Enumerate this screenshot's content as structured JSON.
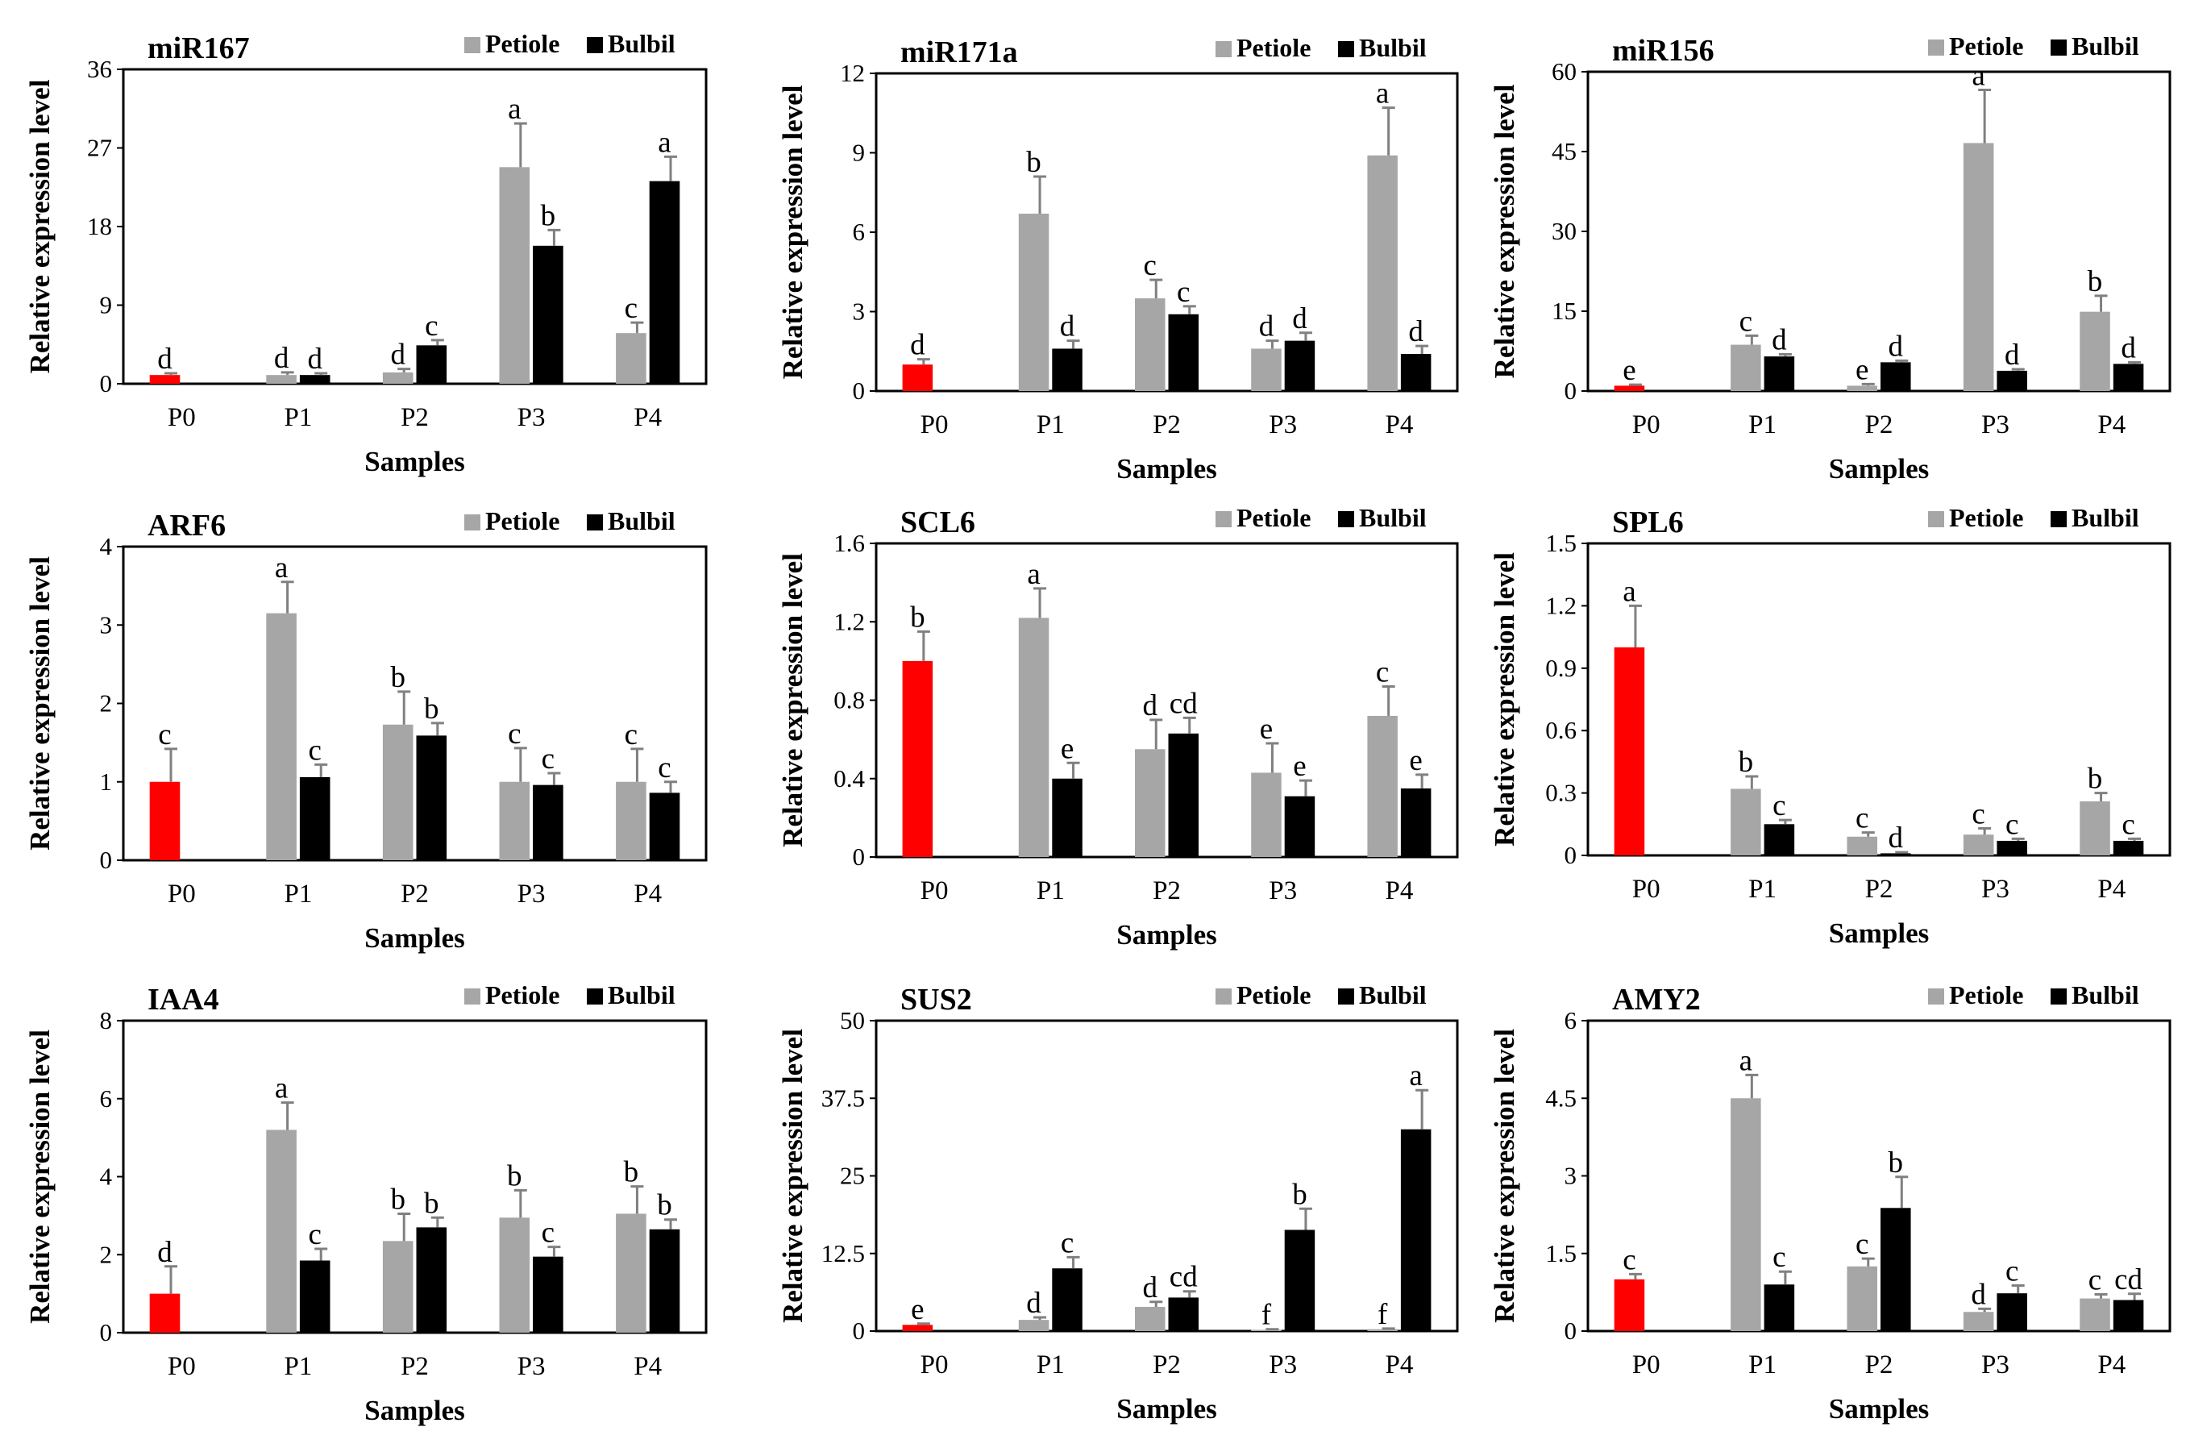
{
  "legend": {
    "petiole": "Petiole",
    "bulbil": "Bulbil"
  },
  "colors": {
    "petiole": "#a6a6a6",
    "bulbil": "#000000",
    "control": "#ff0000",
    "error_bar": "#808080"
  },
  "xlabel": "Samples",
  "ylabel": "Relative expression level",
  "chart_data": [
    {
      "type": "bar",
      "title": "miR167",
      "categories": [
        "P0",
        "P1",
        "P2",
        "P3",
        "P4"
      ],
      "ylim": [
        0,
        36
      ],
      "yticks": [
        0,
        9,
        18,
        27,
        36
      ],
      "ytick_labels": [
        "0",
        "9",
        "18",
        "27",
        "36"
      ],
      "control": {
        "value": 1,
        "error": 0.2,
        "letter": "d"
      },
      "series": [
        {
          "name": "Petiole",
          "values": [
            null,
            1,
            1.3,
            24.8,
            5.8
          ],
          "errors": [
            null,
            0.3,
            0.4,
            5,
            1.2
          ],
          "letters": [
            null,
            "d",
            "d",
            "a",
            "c"
          ]
        },
        {
          "name": "Bulbil",
          "values": [
            null,
            1,
            4.4,
            15.8,
            23.2
          ],
          "errors": [
            null,
            0.2,
            0.6,
            1.8,
            2.8
          ],
          "letters": [
            null,
            "d",
            "c",
            "b",
            "a"
          ]
        }
      ]
    },
    {
      "type": "bar",
      "title": "miR171a",
      "categories": [
        "P0",
        "P1",
        "P2",
        "P3",
        "P4"
      ],
      "ylim": [
        0,
        12
      ],
      "yticks": [
        0,
        3,
        6,
        9,
        12
      ],
      "ytick_labels": [
        "0",
        "3",
        "6",
        "9",
        "12"
      ],
      "control": {
        "value": 1,
        "error": 0.2,
        "letter": "d"
      },
      "series": [
        {
          "name": "Petiole",
          "values": [
            null,
            6.7,
            3.5,
            1.6,
            8.9
          ],
          "errors": [
            null,
            1.4,
            0.7,
            0.3,
            1.8
          ],
          "letters": [
            null,
            "b",
            "c",
            "d",
            "a"
          ]
        },
        {
          "name": "Bulbil",
          "values": [
            null,
            1.6,
            2.9,
            1.9,
            1.4
          ],
          "errors": [
            null,
            0.3,
            0.3,
            0.3,
            0.3
          ],
          "letters": [
            null,
            "d",
            "c",
            "d",
            "d"
          ]
        }
      ]
    },
    {
      "type": "bar",
      "title": "miR156",
      "categories": [
        "P0",
        "P1",
        "P2",
        "P3",
        "P4"
      ],
      "ylim": [
        0,
        60
      ],
      "yticks": [
        0,
        15,
        30,
        45,
        60
      ],
      "ytick_labels": [
        "0",
        "15",
        "30",
        "45",
        "60"
      ],
      "control": {
        "value": 1,
        "error": 0.2,
        "letter": "e"
      },
      "series": [
        {
          "name": "Petiole",
          "values": [
            null,
            8.7,
            1,
            46.6,
            14.9
          ],
          "errors": [
            null,
            1.7,
            0.3,
            10,
            3
          ],
          "letters": [
            null,
            "c",
            "e",
            "a",
            "b"
          ]
        },
        {
          "name": "Bulbil",
          "values": [
            null,
            6.5,
            5.4,
            3.8,
            5.1
          ],
          "errors": [
            null,
            0.4,
            0.3,
            0.3,
            0.3
          ],
          "letters": [
            null,
            "d",
            "d",
            "d",
            "d"
          ]
        }
      ]
    },
    {
      "type": "bar",
      "title": "ARF6",
      "categories": [
        "P0",
        "P1",
        "P2",
        "P3",
        "P4"
      ],
      "ylim": [
        0,
        4
      ],
      "yticks": [
        0,
        1,
        2,
        3,
        4
      ],
      "ytick_labels": [
        "0",
        "1",
        "2",
        "3",
        "4"
      ],
      "control": {
        "value": 1,
        "error": 0.42,
        "letter": "c"
      },
      "series": [
        {
          "name": "Petiole",
          "values": [
            null,
            3.15,
            1.73,
            1,
            1
          ],
          "errors": [
            null,
            0.4,
            0.42,
            0.43,
            0.42
          ],
          "letters": [
            null,
            "a",
            "b",
            "c",
            "c"
          ]
        },
        {
          "name": "Bulbil",
          "values": [
            null,
            1.06,
            1.59,
            0.96,
            0.86
          ],
          "errors": [
            null,
            0.16,
            0.16,
            0.15,
            0.14
          ],
          "letters": [
            null,
            "c",
            "b",
            "c",
            "c"
          ]
        }
      ]
    },
    {
      "type": "bar",
      "title": "SCL6",
      "categories": [
        "P0",
        "P1",
        "P2",
        "P3",
        "P4"
      ],
      "ylim": [
        0,
        1.6
      ],
      "yticks": [
        0,
        0.4,
        0.8,
        1.2,
        1.6
      ],
      "ytick_labels": [
        "0",
        "0.4",
        "0.8",
        "1.2",
        "1.6"
      ],
      "control": {
        "value": 1,
        "error": 0.15,
        "letter": "b"
      },
      "series": [
        {
          "name": "Petiole",
          "values": [
            null,
            1.22,
            0.55,
            0.43,
            0.72
          ],
          "errors": [
            null,
            0.15,
            0.15,
            0.15,
            0.15
          ],
          "letters": [
            null,
            "a",
            "d",
            "e",
            "c"
          ]
        },
        {
          "name": "Bulbil",
          "values": [
            null,
            0.4,
            0.63,
            0.31,
            0.35
          ],
          "errors": [
            null,
            0.08,
            0.08,
            0.08,
            0.07
          ],
          "letters": [
            null,
            "e",
            "cd",
            "e",
            "e"
          ]
        }
      ]
    },
    {
      "type": "bar",
      "title": "SPL6",
      "categories": [
        "P0",
        "P1",
        "P2",
        "P3",
        "P4"
      ],
      "ylim": [
        0,
        1.5
      ],
      "yticks": [
        0,
        0.3,
        0.6,
        0.9,
        1.2,
        1.5
      ],
      "ytick_labels": [
        "0",
        "0.3",
        "0.6",
        "0.9",
        "1.2",
        "1.5"
      ],
      "control": {
        "value": 1,
        "error": 0.2,
        "letter": "a"
      },
      "series": [
        {
          "name": "Petiole",
          "values": [
            null,
            0.32,
            0.09,
            0.1,
            0.26
          ],
          "errors": [
            null,
            0.06,
            0.02,
            0.03,
            0.04
          ],
          "letters": [
            null,
            "b",
            "c",
            "c",
            "b"
          ]
        },
        {
          "name": "Bulbil",
          "values": [
            null,
            0.15,
            0.01,
            0.07,
            0.07
          ],
          "errors": [
            null,
            0.02,
            0.005,
            0.01,
            0.01
          ],
          "letters": [
            null,
            "c",
            "d",
            "c",
            "c"
          ]
        }
      ]
    },
    {
      "type": "bar",
      "title": "IAA4",
      "categories": [
        "P0",
        "P1",
        "P2",
        "P3",
        "P4"
      ],
      "ylim": [
        0,
        8
      ],
      "yticks": [
        0,
        2,
        4,
        6,
        8
      ],
      "ytick_labels": [
        "0",
        "2",
        "4",
        "6",
        "8"
      ],
      "control": {
        "value": 1,
        "error": 0.7,
        "letter": "d"
      },
      "series": [
        {
          "name": "Petiole",
          "values": [
            null,
            5.2,
            2.35,
            2.95,
            3.05
          ],
          "errors": [
            null,
            0.7,
            0.7,
            0.7,
            0.7
          ],
          "letters": [
            null,
            "a",
            "b",
            "b",
            "b"
          ]
        },
        {
          "name": "Bulbil",
          "values": [
            null,
            1.85,
            2.7,
            1.95,
            2.65
          ],
          "errors": [
            null,
            0.3,
            0.25,
            0.25,
            0.25
          ],
          "letters": [
            null,
            "c",
            "b",
            "c",
            "b"
          ]
        }
      ]
    },
    {
      "type": "bar",
      "title": "SUS2",
      "categories": [
        "P0",
        "P1",
        "P2",
        "P3",
        "P4"
      ],
      "ylim": [
        0,
        50
      ],
      "yticks": [
        0,
        12.5,
        25,
        37.5,
        50
      ],
      "ytick_labels": [
        "0",
        "12.5",
        "25",
        "37.5",
        "50"
      ],
      "control": {
        "value": 1,
        "error": 0.2,
        "letter": "e"
      },
      "series": [
        {
          "name": "Petiole",
          "values": [
            null,
            1.8,
            3.9,
            0.2,
            0.3
          ],
          "errors": [
            null,
            0.4,
            0.8,
            0.1,
            0.1
          ],
          "letters": [
            null,
            "d",
            "d",
            "f",
            "f"
          ]
        },
        {
          "name": "Bulbil",
          "values": [
            null,
            10.1,
            5.4,
            16.3,
            32.5
          ],
          "errors": [
            null,
            1.8,
            1,
            3.4,
            6.3
          ],
          "letters": [
            null,
            "c",
            "cd",
            "b",
            "a"
          ]
        }
      ]
    },
    {
      "type": "bar",
      "title": "AMY2",
      "categories": [
        "P0",
        "P1",
        "P2",
        "P3",
        "P4"
      ],
      "ylim": [
        0,
        6
      ],
      "yticks": [
        0,
        1.5,
        3,
        4.5,
        6
      ],
      "ytick_labels": [
        "0",
        "1.5",
        "3",
        "4.5",
        "6"
      ],
      "control": {
        "value": 1,
        "error": 0.1,
        "letter": "c"
      },
      "series": [
        {
          "name": "Petiole",
          "values": [
            null,
            4.5,
            1.25,
            0.37,
            0.63
          ],
          "errors": [
            null,
            0.45,
            0.15,
            0.06,
            0.08
          ],
          "letters": [
            null,
            "a",
            "c",
            "d",
            "c"
          ]
        },
        {
          "name": "Bulbil",
          "values": [
            null,
            0.9,
            2.38,
            0.73,
            0.6
          ],
          "errors": [
            null,
            0.25,
            0.6,
            0.15,
            0.12
          ],
          "letters": [
            null,
            "c",
            "b",
            "c",
            "cd"
          ]
        }
      ]
    }
  ]
}
